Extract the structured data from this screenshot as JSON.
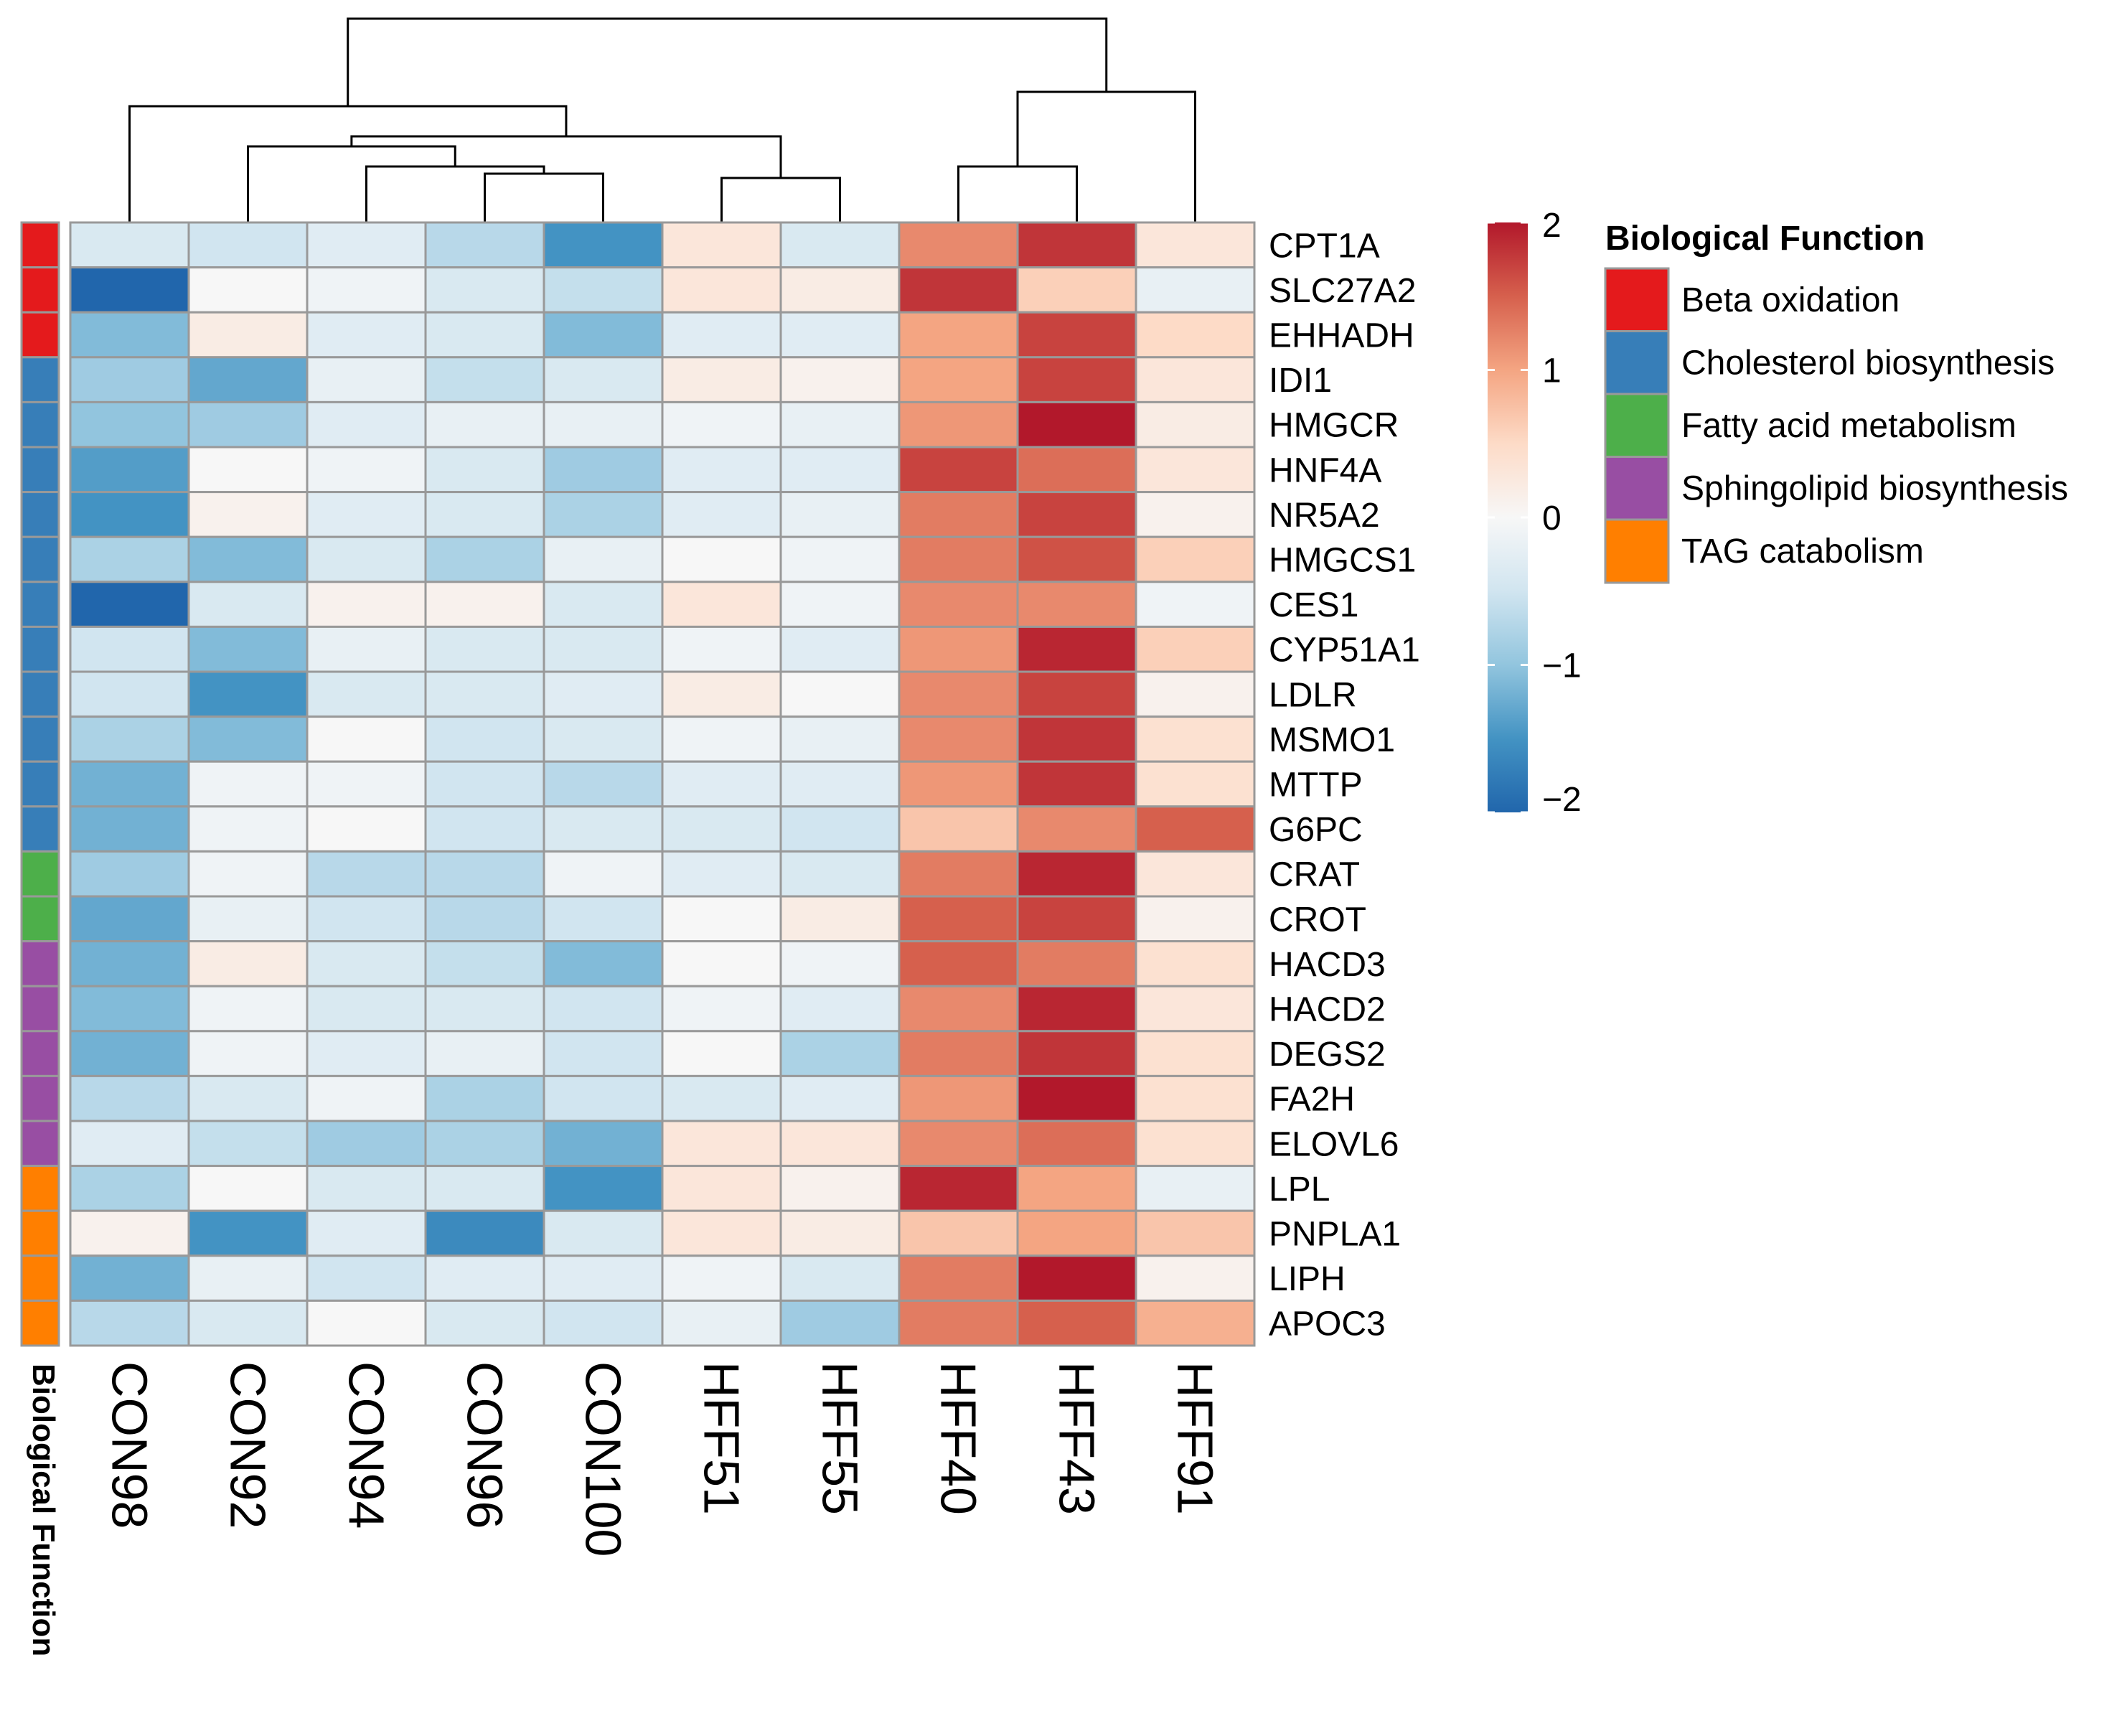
{
  "chart_data": {
    "type": "heatmap",
    "title": "",
    "columns": [
      "CON98",
      "CON92",
      "CON94",
      "CON96",
      "CON100",
      "HFF51",
      "HFF55",
      "HFF40",
      "HFF43",
      "HFF91"
    ],
    "rows": [
      {
        "gene": "CPT1A",
        "function": "Beta oxidation",
        "values": [
          -0.4,
          -0.5,
          -0.3,
          -0.7,
          -1.5,
          0.3,
          -0.4,
          1.2,
          1.8,
          0.3
        ]
      },
      {
        "gene": "SLC27A2",
        "function": "Beta oxidation",
        "values": [
          -2.0,
          0.0,
          -0.1,
          -0.4,
          -0.6,
          0.3,
          0.2,
          1.8,
          0.6,
          -0.2
        ]
      },
      {
        "gene": "EHHADH",
        "function": "Beta oxidation",
        "values": [
          -1.1,
          0.2,
          -0.3,
          -0.4,
          -1.1,
          -0.3,
          -0.3,
          1.0,
          1.7,
          0.5
        ]
      },
      {
        "gene": "IDI1",
        "function": "Cholesterol biosynthesis",
        "values": [
          -0.9,
          -1.3,
          -0.2,
          -0.6,
          -0.4,
          0.2,
          0.1,
          1.0,
          1.7,
          0.3
        ]
      },
      {
        "gene": "HMGCR",
        "function": "Cholesterol biosynthesis",
        "values": [
          -1.0,
          -0.9,
          -0.3,
          -0.2,
          -0.2,
          -0.1,
          -0.2,
          1.1,
          2.0,
          0.2
        ]
      },
      {
        "gene": "HNF4A",
        "function": "Cholesterol biosynthesis",
        "values": [
          -1.4,
          0.0,
          -0.1,
          -0.4,
          -0.9,
          -0.3,
          -0.3,
          1.7,
          1.4,
          0.3
        ]
      },
      {
        "gene": "NR5A2",
        "function": "Cholesterol biosynthesis",
        "values": [
          -1.5,
          0.1,
          -0.3,
          -0.4,
          -0.8,
          -0.3,
          -0.2,
          1.3,
          1.7,
          0.1
        ]
      },
      {
        "gene": "HMGCS1",
        "function": "Cholesterol biosynthesis",
        "values": [
          -0.8,
          -1.1,
          -0.4,
          -0.8,
          -0.2,
          0.0,
          -0.1,
          1.3,
          1.6,
          0.6
        ]
      },
      {
        "gene": "CES1",
        "function": "Cholesterol biosynthesis",
        "values": [
          -2.1,
          -0.4,
          0.1,
          0.1,
          -0.4,
          0.3,
          -0.1,
          1.2,
          1.2,
          -0.1
        ]
      },
      {
        "gene": "CYP51A1",
        "function": "Cholesterol biosynthesis",
        "values": [
          -0.5,
          -1.1,
          -0.2,
          -0.4,
          -0.4,
          -0.1,
          -0.3,
          1.1,
          1.9,
          0.6
        ]
      },
      {
        "gene": "LDLR",
        "function": "Cholesterol biosynthesis",
        "values": [
          -0.5,
          -1.5,
          -0.4,
          -0.4,
          -0.3,
          0.2,
          0.0,
          1.2,
          1.7,
          0.1
        ]
      },
      {
        "gene": "MSMO1",
        "function": "Cholesterol biosynthesis",
        "values": [
          -0.8,
          -1.1,
          0.0,
          -0.5,
          -0.4,
          -0.1,
          -0.2,
          1.2,
          1.8,
          0.4
        ]
      },
      {
        "gene": "MTTP",
        "function": "Cholesterol biosynthesis",
        "values": [
          -1.2,
          -0.1,
          -0.1,
          -0.5,
          -0.7,
          -0.3,
          -0.3,
          1.1,
          1.8,
          0.4
        ]
      },
      {
        "gene": "G6PC",
        "function": "Cholesterol biosynthesis",
        "values": [
          -1.2,
          -0.1,
          0.0,
          -0.5,
          -0.4,
          -0.4,
          -0.5,
          0.7,
          1.2,
          1.5
        ]
      },
      {
        "gene": "CRAT",
        "function": "Fatty acid metabolism",
        "values": [
          -0.9,
          -0.1,
          -0.7,
          -0.7,
          -0.1,
          -0.3,
          -0.4,
          1.3,
          1.9,
          0.3
        ]
      },
      {
        "gene": "CROT",
        "function": "Fatty acid metabolism",
        "values": [
          -1.3,
          -0.2,
          -0.5,
          -0.7,
          -0.5,
          0.0,
          0.2,
          1.5,
          1.7,
          0.1
        ]
      },
      {
        "gene": "HACD3",
        "function": "Sphingolipid biosynthesis",
        "values": [
          -1.2,
          0.2,
          -0.4,
          -0.6,
          -1.1,
          0.0,
          -0.1,
          1.5,
          1.3,
          0.4
        ]
      },
      {
        "gene": "HACD2",
        "function": "Sphingolipid biosynthesis",
        "values": [
          -1.1,
          -0.1,
          -0.4,
          -0.4,
          -0.5,
          -0.1,
          -0.3,
          1.2,
          1.9,
          0.3
        ]
      },
      {
        "gene": "DEGS2",
        "function": "Sphingolipid biosynthesis",
        "values": [
          -1.2,
          -0.1,
          -0.3,
          -0.2,
          -0.5,
          0.0,
          -0.8,
          1.3,
          1.8,
          0.4
        ]
      },
      {
        "gene": "FA2H",
        "function": "Sphingolipid biosynthesis",
        "values": [
          -0.7,
          -0.4,
          -0.1,
          -0.8,
          -0.5,
          -0.4,
          -0.3,
          1.1,
          2.0,
          0.4
        ]
      },
      {
        "gene": "ELOVL6",
        "function": "Sphingolipid biosynthesis",
        "values": [
          -0.3,
          -0.6,
          -0.9,
          -0.8,
          -1.2,
          0.3,
          0.3,
          1.2,
          1.4,
          0.4
        ]
      },
      {
        "gene": "LPL",
        "function": "TAG catabolism",
        "values": [
          -0.8,
          0.0,
          -0.4,
          -0.4,
          -1.5,
          0.3,
          0.1,
          1.9,
          1.0,
          -0.2
        ]
      },
      {
        "gene": "PNPLA1",
        "function": "TAG catabolism",
        "values": [
          0.1,
          -1.5,
          -0.3,
          -1.6,
          -0.4,
          0.3,
          0.2,
          0.7,
          1.0,
          0.7
        ]
      },
      {
        "gene": "LIPH",
        "function": "TAG catabolism",
        "values": [
          -1.2,
          -0.2,
          -0.5,
          -0.3,
          -0.3,
          -0.1,
          -0.4,
          1.3,
          2.0,
          0.1
        ]
      },
      {
        "gene": "APOC3",
        "function": "TAG catabolism",
        "values": [
          -0.7,
          -0.4,
          0.0,
          -0.4,
          -0.5,
          -0.2,
          -0.9,
          1.3,
          1.5,
          0.9
        ]
      }
    ],
    "color_scale": {
      "min": -2,
      "max": 2,
      "ticks": [
        {
          "value": 2,
          "label": "2"
        },
        {
          "value": 1,
          "label": "1"
        },
        {
          "value": 0,
          "label": "0"
        },
        {
          "value": -1,
          "label": "−1"
        },
        {
          "value": -2,
          "label": "−2"
        }
      ],
      "stops": [
        "#2166AC",
        "#4393C3",
        "#92C5DE",
        "#D1E5F0",
        "#F7F7F7",
        "#FDDBC7",
        "#F4A582",
        "#D6604D",
        "#B2182B"
      ]
    },
    "annotation": {
      "title": "Biological Function",
      "column_label": "Biological Function",
      "legend": [
        {
          "label": "Beta oxidation",
          "color": "#E41A1C"
        },
        {
          "label": "Cholesterol biosynthesis",
          "color": "#377EB8"
        },
        {
          "label": "Fatty acid metabolism",
          "color": "#4DAF4A"
        },
        {
          "label": "Sphingolipid biosynthesis",
          "color": "#984EA3"
        },
        {
          "label": "TAG catabolism",
          "color": "#FF7F00"
        }
      ]
    }
  }
}
